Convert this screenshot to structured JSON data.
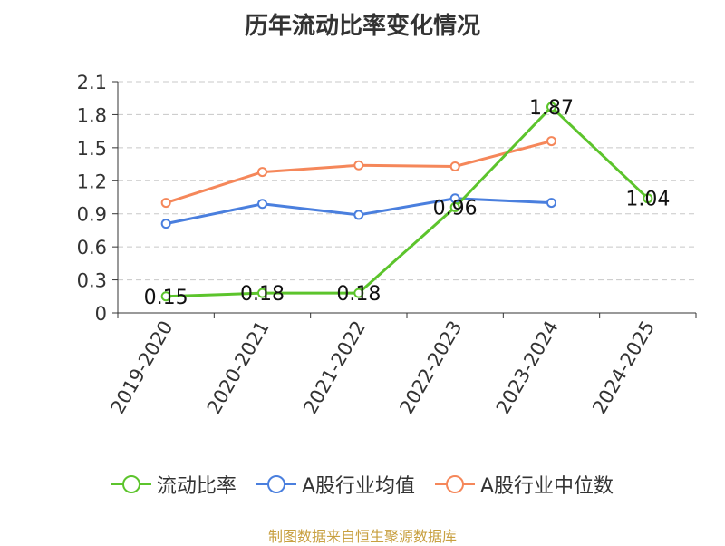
{
  "chart_data": {
    "type": "line",
    "title": "历年流动比率变化情况",
    "categories": [
      "2019-2020",
      "2020-2021",
      "2021-2022",
      "2022-2023",
      "2023-2024",
      "2024-2025"
    ],
    "ylim": [
      0,
      2.1
    ],
    "yticks": [
      "0",
      "0.3",
      "0.6",
      "0.9",
      "1.2",
      "1.5",
      "1.8",
      "2.1"
    ],
    "grid": true,
    "legend_position": "bottom",
    "series": [
      {
        "name": "流动比率",
        "color": "#5cc42c",
        "values": [
          0.15,
          0.18,
          0.18,
          0.96,
          1.87,
          1.04
        ],
        "labels": [
          "0.15",
          "0.18",
          "0.18",
          "0.96",
          "1.87",
          "1.04"
        ]
      },
      {
        "name": "A股行业均值",
        "color": "#4a7fde",
        "values": [
          0.81,
          0.99,
          0.89,
          1.04,
          1.0,
          null
        ]
      },
      {
        "name": "A股行业中位数",
        "color": "#f5875a",
        "values": [
          1.0,
          1.28,
          1.34,
          1.33,
          1.56,
          null
        ]
      }
    ],
    "source": "制图数据来自恒生聚源数据库"
  }
}
